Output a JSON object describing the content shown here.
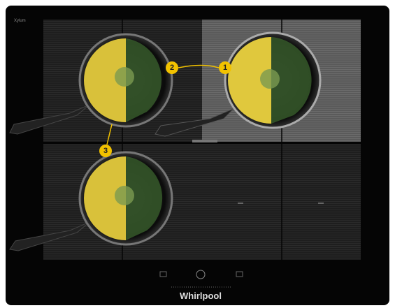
{
  "brand_mark": "Xylum",
  "logo": "Whirlpool",
  "callouts": [
    {
      "label": "1"
    },
    {
      "label": "2"
    },
    {
      "label": "3"
    }
  ]
}
